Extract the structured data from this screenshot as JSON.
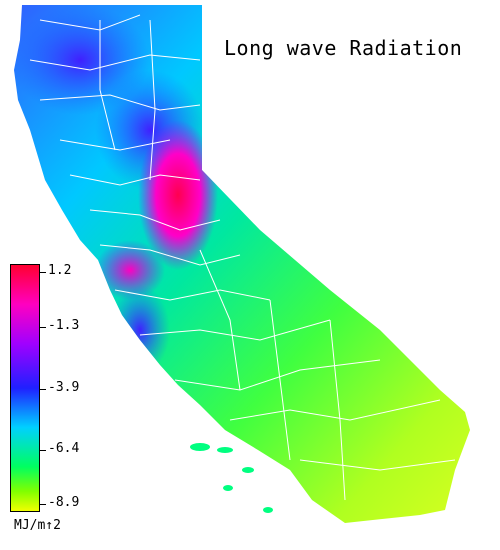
{
  "title": "Long wave Radiation",
  "legend": {
    "ticks": [
      "1.2",
      "-1.3",
      "-3.9",
      "-6.4",
      "-8.9"
    ],
    "unit": "MJ/m↑2",
    "colors": [
      "#ff0030",
      "#ff00c0",
      "#a000ff",
      "#2020ff",
      "#00d0ff",
      "#00ff60",
      "#80ff00",
      "#f0ff00"
    ]
  }
}
